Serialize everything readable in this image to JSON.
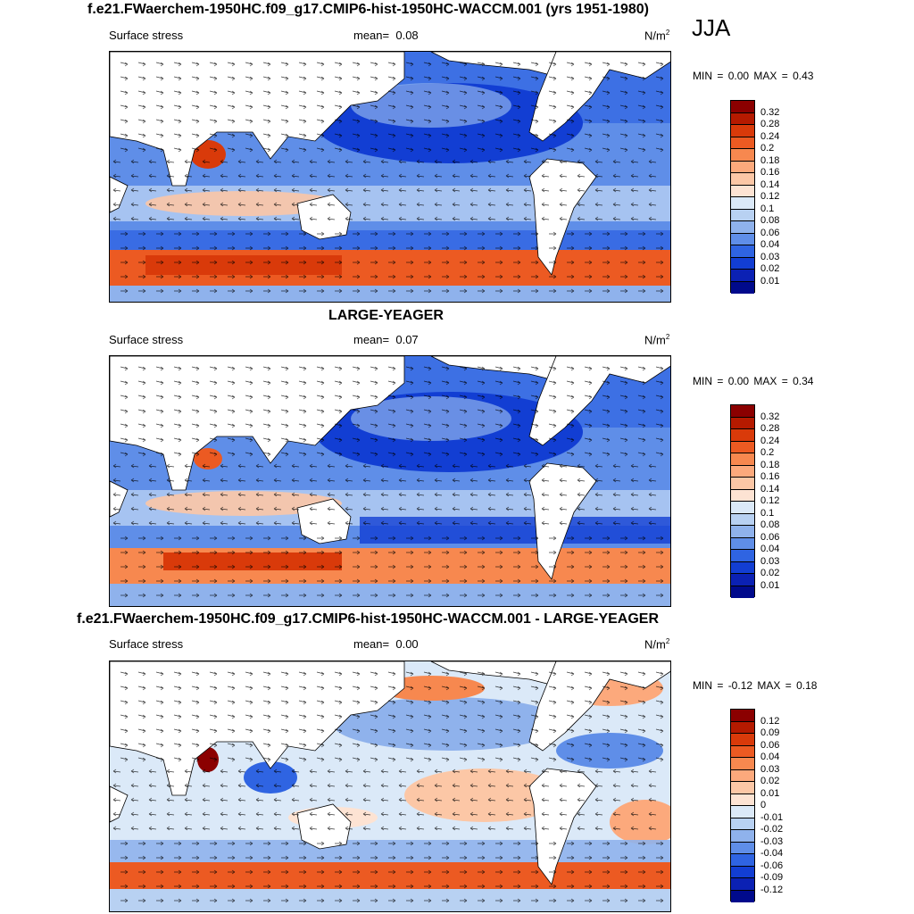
{
  "season": "JJA",
  "panels": [
    {
      "title": "f.e21.FWaerchem-1950HC.f09_g17.CMIP6-hist-1950HC-WACCM.001 (yrs 1951-1980)",
      "variable": "Surface stress",
      "mean_label": "mean=",
      "mean": "0.08",
      "units": "N/m",
      "units_sup": "2",
      "min_label": "MIN =",
      "min": "0.00",
      "max_label": "MAX =",
      "max": "0.43",
      "colorbar_labels": [
        "0.32",
        "0.28",
        "0.24",
        "0.2",
        "0.18",
        "0.16",
        "0.14",
        "0.12",
        "0.1",
        "0.08",
        "0.06",
        "0.04",
        "0.03",
        "0.02",
        "0.01"
      ]
    },
    {
      "title": "LARGE-YEAGER",
      "variable": "Surface stress",
      "mean_label": "mean=",
      "mean": "0.07",
      "units": "N/m",
      "units_sup": "2",
      "min_label": "MIN =",
      "min": "0.00",
      "max_label": "MAX =",
      "max": "0.34",
      "colorbar_labels": [
        "0.32",
        "0.28",
        "0.24",
        "0.2",
        "0.18",
        "0.16",
        "0.14",
        "0.12",
        "0.1",
        "0.08",
        "0.06",
        "0.04",
        "0.03",
        "0.02",
        "0.01"
      ]
    },
    {
      "title": "f.e21.FWaerchem-1950HC.f09_g17.CMIP6-hist-1950HC-WACCM.001 - LARGE-YEAGER",
      "variable": "Surface stress",
      "mean_label": "mean=",
      "mean": "0.00",
      "units": "N/m",
      "units_sup": "2",
      "min_label": "MIN =",
      "min": "-0.12",
      "max_label": "MAX =",
      "max": "0.18",
      "colorbar_labels": [
        "0.12",
        "0.09",
        "0.06",
        "0.04",
        "0.03",
        "0.02",
        "0.01",
        "0",
        "-0.01",
        "-0.02",
        "-0.03",
        "-0.04",
        "-0.06",
        "-0.09",
        "-0.12"
      ]
    }
  ],
  "colors": {
    "abs_scale": [
      "#8b0000",
      "#b51a00",
      "#d93a0a",
      "#ec5a22",
      "#f7884f",
      "#fca97c",
      "#fcc7a6",
      "#fde3d3",
      "#dbe9f8",
      "#b8d1f2",
      "#8fb2ec",
      "#5f8ee8",
      "#2f64e2",
      "#123ed3",
      "#0b21b4",
      "#000a8c"
    ],
    "diff_scale": [
      "#8b0000",
      "#b51a00",
      "#d93a0a",
      "#ec5a22",
      "#f7884f",
      "#fca97c",
      "#fcc7a6",
      "#fde3d3",
      "#dbe9f8",
      "#b8d1f2",
      "#8fb2ec",
      "#5f8ee8",
      "#2f64e2",
      "#123ed3",
      "#0b21b4",
      "#000a8c"
    ],
    "land": "#ffffff",
    "coast": "#000000"
  }
}
